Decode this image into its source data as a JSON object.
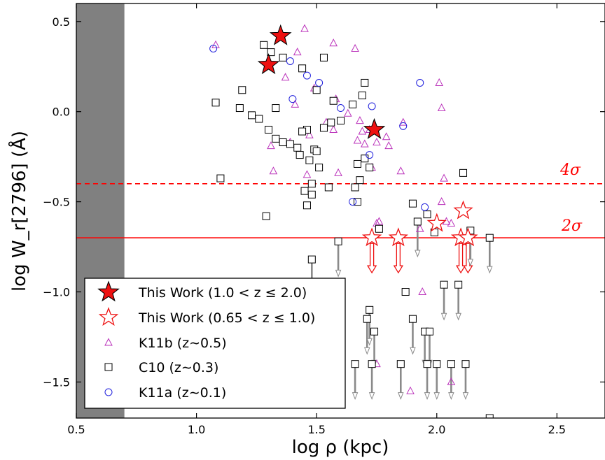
{
  "chart_data": {
    "type": "scatter",
    "xlabel": "log ρ (kpc)",
    "ylabel": "log W_r[2796] (Å)",
    "xlim": [
      0.5,
      2.7
    ],
    "ylim": [
      -1.7,
      0.6
    ],
    "xticks": [
      0.5,
      1.0,
      1.5,
      2.0,
      2.5
    ],
    "xtick_labels": [
      "0.5",
      "1.0",
      "1.5",
      "2.0",
      "2.5"
    ],
    "yticks": [
      0.5,
      0.0,
      -0.5,
      -1.0,
      -1.5
    ],
    "ytick_labels": [
      "0.5",
      "0.0",
      "−0.5",
      "−1.0",
      "−1.5"
    ],
    "shaded_region": {
      "x_from": 0.5,
      "x_to": 0.7,
      "color": "#808080"
    },
    "thresholds": [
      {
        "y": -0.4,
        "style": "dashed",
        "color": "#ff0000",
        "label": "4σ"
      },
      {
        "y": -0.7,
        "style": "solid",
        "color": "#ff0000",
        "label": "2σ"
      }
    ],
    "legend": {
      "placement": "lower-left",
      "entries": [
        {
          "marker": "filled-star",
          "label": "This Work (1.0 < z ≤ 2.0)"
        },
        {
          "marker": "open-star",
          "label": "This Work (0.65 < z ≤ 1.0)"
        },
        {
          "marker": "triangle",
          "label": "K11b (z∼0.5)"
        },
        {
          "marker": "square",
          "label": "C10 (z∼0.3)"
        },
        {
          "marker": "circle",
          "label": "K11a (z∼0.1)"
        }
      ]
    },
    "series": [
      {
        "name": "This Work (1.0 < z ≤ 2.0)",
        "marker": "filled-star",
        "color": "#ee1111",
        "points": [
          [
            1.35,
            0.42
          ],
          [
            1.3,
            0.26
          ],
          [
            1.74,
            -0.1
          ]
        ]
      },
      {
        "name": "This Work (0.65 < z ≤ 1.0)",
        "marker": "open-star",
        "color": "#ee1111",
        "points": [
          [
            2.11,
            -0.55
          ],
          [
            2.0,
            -0.62
          ]
        ],
        "upper_limits": [
          [
            1.73,
            -0.7
          ],
          [
            1.84,
            -0.7
          ],
          [
            2.1,
            -0.7
          ],
          [
            2.13,
            -0.7
          ]
        ]
      },
      {
        "name": "K11b (z∼0.5)",
        "marker": "triangle",
        "color": "#bb33bb",
        "points": [
          [
            1.08,
            0.37
          ],
          [
            1.45,
            0.46
          ],
          [
            1.57,
            0.38
          ],
          [
            1.66,
            0.35
          ],
          [
            1.42,
            0.33
          ],
          [
            1.37,
            0.19
          ],
          [
            1.49,
            0.13
          ],
          [
            1.41,
            0.04
          ],
          [
            1.58,
            0.07
          ],
          [
            1.31,
            -0.19
          ],
          [
            1.39,
            -0.17
          ],
          [
            1.47,
            -0.13
          ],
          [
            1.54,
            -0.06
          ],
          [
            1.57,
            -0.1
          ],
          [
            1.63,
            -0.01
          ],
          [
            1.68,
            -0.05
          ],
          [
            1.69,
            -0.11
          ],
          [
            1.67,
            -0.16
          ],
          [
            1.7,
            -0.18
          ],
          [
            1.72,
            -0.1
          ],
          [
            1.75,
            -0.17
          ],
          [
            1.79,
            -0.14
          ],
          [
            1.8,
            -0.19
          ],
          [
            1.86,
            -0.06
          ],
          [
            1.73,
            -0.31
          ],
          [
            1.85,
            -0.33
          ],
          [
            1.32,
            -0.33
          ],
          [
            1.46,
            -0.35
          ],
          [
            1.59,
            -0.34
          ],
          [
            2.01,
            0.16
          ],
          [
            2.02,
            0.02
          ],
          [
            2.03,
            -0.37
          ],
          [
            2.02,
            -0.5
          ],
          [
            2.04,
            -0.61
          ],
          [
            2.06,
            -0.62
          ],
          [
            1.93,
            -0.65
          ],
          [
            1.75,
            -0.62
          ],
          [
            1.76,
            -0.61
          ],
          [
            1.94,
            -1.0
          ],
          [
            2.06,
            -1.5
          ],
          [
            1.75,
            -1.4
          ],
          [
            1.89,
            -1.55
          ]
        ]
      },
      {
        "name": "C10 (z∼0.3)",
        "marker": "square",
        "color": "#000000",
        "points": [
          [
            1.28,
            0.37
          ],
          [
            1.31,
            0.33
          ],
          [
            1.36,
            0.3
          ],
          [
            1.44,
            0.24
          ],
          [
            1.5,
            0.12
          ],
          [
            1.53,
            0.3
          ],
          [
            1.7,
            0.16
          ],
          [
            1.69,
            0.09
          ],
          [
            1.57,
            0.06
          ],
          [
            1.6,
            -0.05
          ],
          [
            1.65,
            0.04
          ],
          [
            1.19,
            0.12
          ],
          [
            1.08,
            0.05
          ],
          [
            1.18,
            0.02
          ],
          [
            1.23,
            -0.02
          ],
          [
            1.26,
            -0.04
          ],
          [
            1.33,
            0.02
          ],
          [
            1.46,
            -0.1
          ],
          [
            1.44,
            -0.11
          ],
          [
            1.56,
            -0.06
          ],
          [
            1.53,
            -0.09
          ],
          [
            1.3,
            -0.1
          ],
          [
            1.33,
            -0.15
          ],
          [
            1.36,
            -0.17
          ],
          [
            1.39,
            -0.18
          ],
          [
            1.42,
            -0.2
          ],
          [
            1.49,
            -0.21
          ],
          [
            1.43,
            -0.24
          ],
          [
            1.47,
            -0.27
          ],
          [
            1.5,
            -0.22
          ],
          [
            1.51,
            -0.31
          ],
          [
            1.67,
            -0.29
          ],
          [
            1.7,
            -0.26
          ],
          [
            1.72,
            -0.31
          ],
          [
            1.48,
            -0.4
          ],
          [
            1.45,
            -0.44
          ],
          [
            1.48,
            -0.46
          ],
          [
            1.55,
            -0.42
          ],
          [
            1.66,
            -0.42
          ],
          [
            1.68,
            -0.38
          ],
          [
            1.67,
            -0.5
          ],
          [
            1.46,
            -0.52
          ],
          [
            1.1,
            -0.37
          ],
          [
            1.29,
            -0.58
          ],
          [
            1.9,
            -0.51
          ],
          [
            1.96,
            -0.57
          ],
          [
            1.99,
            -0.67
          ],
          [
            1.76,
            -0.65
          ],
          [
            2.11,
            -0.34
          ],
          [
            1.87,
            -1.0
          ],
          [
            2.22,
            -1.7
          ]
        ],
        "upper_limits": [
          [
            1.48,
            -0.82
          ],
          [
            1.59,
            -0.72
          ],
          [
            1.92,
            -0.61
          ],
          [
            2.14,
            -0.66
          ],
          [
            2.22,
            -0.7
          ],
          [
            1.71,
            -1.15
          ],
          [
            1.72,
            -1.1
          ],
          [
            1.74,
            -1.22
          ],
          [
            1.66,
            -1.4
          ],
          [
            1.73,
            -1.4
          ],
          [
            1.85,
            -1.4
          ],
          [
            1.9,
            -1.15
          ],
          [
            1.95,
            -1.22
          ],
          [
            1.97,
            -1.22
          ],
          [
            1.96,
            -1.4
          ],
          [
            2.0,
            -1.4
          ],
          [
            2.03,
            -0.96
          ],
          [
            2.06,
            -1.4
          ],
          [
            2.09,
            -0.96
          ],
          [
            2.12,
            -1.4
          ]
        ]
      },
      {
        "name": "K11a (z∼0.1)",
        "marker": "circle",
        "color": "#2222dd",
        "points": [
          [
            1.07,
            0.35
          ],
          [
            1.39,
            0.28
          ],
          [
            1.46,
            0.2
          ],
          [
            1.51,
            0.16
          ],
          [
            1.4,
            0.07
          ],
          [
            1.6,
            0.02
          ],
          [
            1.73,
            0.03
          ],
          [
            1.86,
            -0.08
          ],
          [
            1.93,
            0.16
          ],
          [
            1.72,
            -0.24
          ],
          [
            1.65,
            -0.5
          ],
          [
            1.95,
            -0.53
          ]
        ]
      }
    ]
  }
}
